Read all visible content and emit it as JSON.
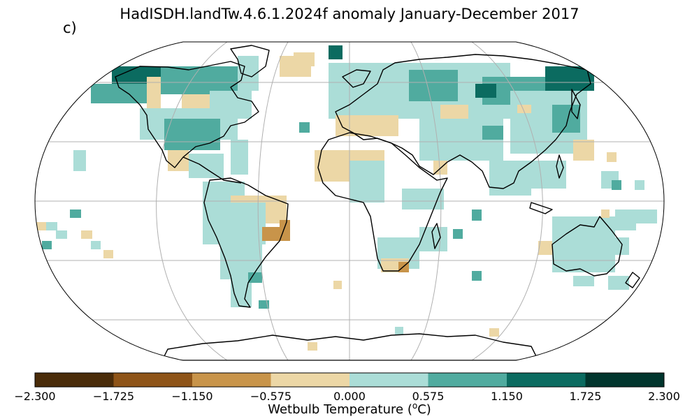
{
  "title": "HadISDH.landTw.4.6.1.2024f anomaly January-December 2017",
  "panel_label": "c)",
  "colorbar": {
    "label_prefix": "Wetbulb Temperature (",
    "label_sup": "o",
    "label_suffix": "C)",
    "ticks": [
      "−2.300",
      "−1.725",
      "−1.150",
      "−0.575",
      "0.000",
      "0.575",
      "1.150",
      "1.725",
      "2.300"
    ],
    "colors": [
      "#4a2c0a",
      "#8e5418",
      "#c8944a",
      "#ecd7a6",
      "#abddd7",
      "#50ab9f",
      "#0b6b60",
      "#01352d"
    ]
  },
  "map": {
    "projection": "Robinson",
    "grid": true
  }
}
